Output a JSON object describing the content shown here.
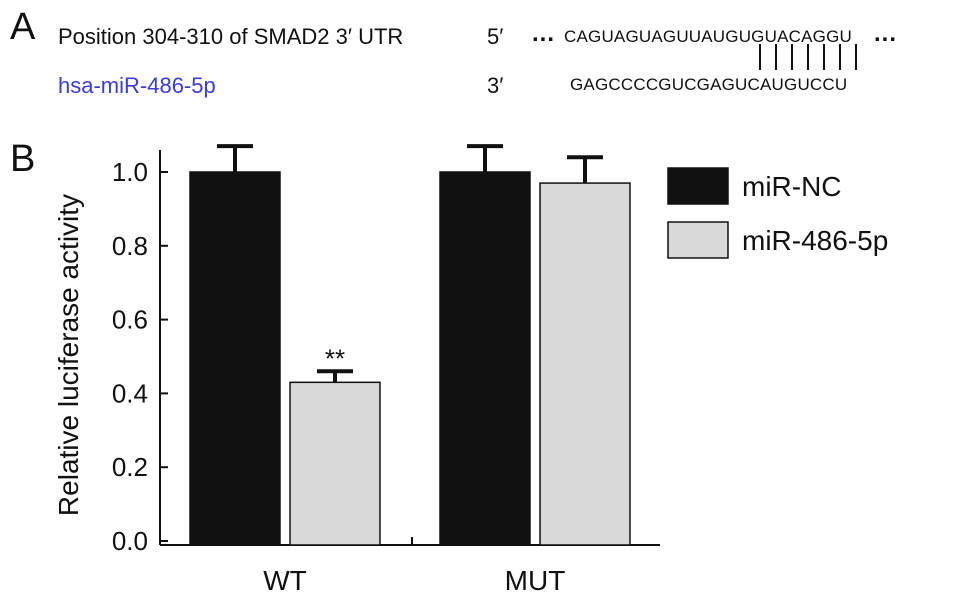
{
  "panelA": {
    "label": "A",
    "target_label": "Position 304-310 of SMAD2 3′ UTR",
    "target_prime": "5′",
    "target_seq": "CAGUAGUAGUUAUGUGUACAGGU",
    "ellipsis": "...",
    "mirna_label": "hsa-miR-486-5p",
    "mirna_prime": "3′",
    "mirna_seq": "GAGCCCCGUCGAGUCAUGUCCU",
    "pair_count": 7,
    "mirna_color": "#3b3bd6"
  },
  "panelB": {
    "label": "B"
  },
  "chart_data": {
    "type": "bar",
    "categories": [
      "WT",
      "MUT"
    ],
    "series": [
      {
        "name": "miR-NC",
        "values": [
          1.0,
          1.0
        ],
        "errors": [
          0.07,
          0.07
        ],
        "color": "#111111"
      },
      {
        "name": "miR-486-5p",
        "values": [
          0.43,
          0.97
        ],
        "errors": [
          0.03,
          0.07
        ],
        "color": "#d9d9d9"
      }
    ],
    "annotations": [
      {
        "category": "WT",
        "series": "miR-486-5p",
        "text": "**"
      }
    ],
    "ylabel": "Relative luciferase activity",
    "xlabel": "",
    "ylim": [
      0,
      1.0
    ],
    "yticks": [
      "0.0",
      "0.2",
      "0.4",
      "0.6",
      "0.8",
      "1.0"
    ],
    "legend_position": "top-right",
    "grid": false
  }
}
